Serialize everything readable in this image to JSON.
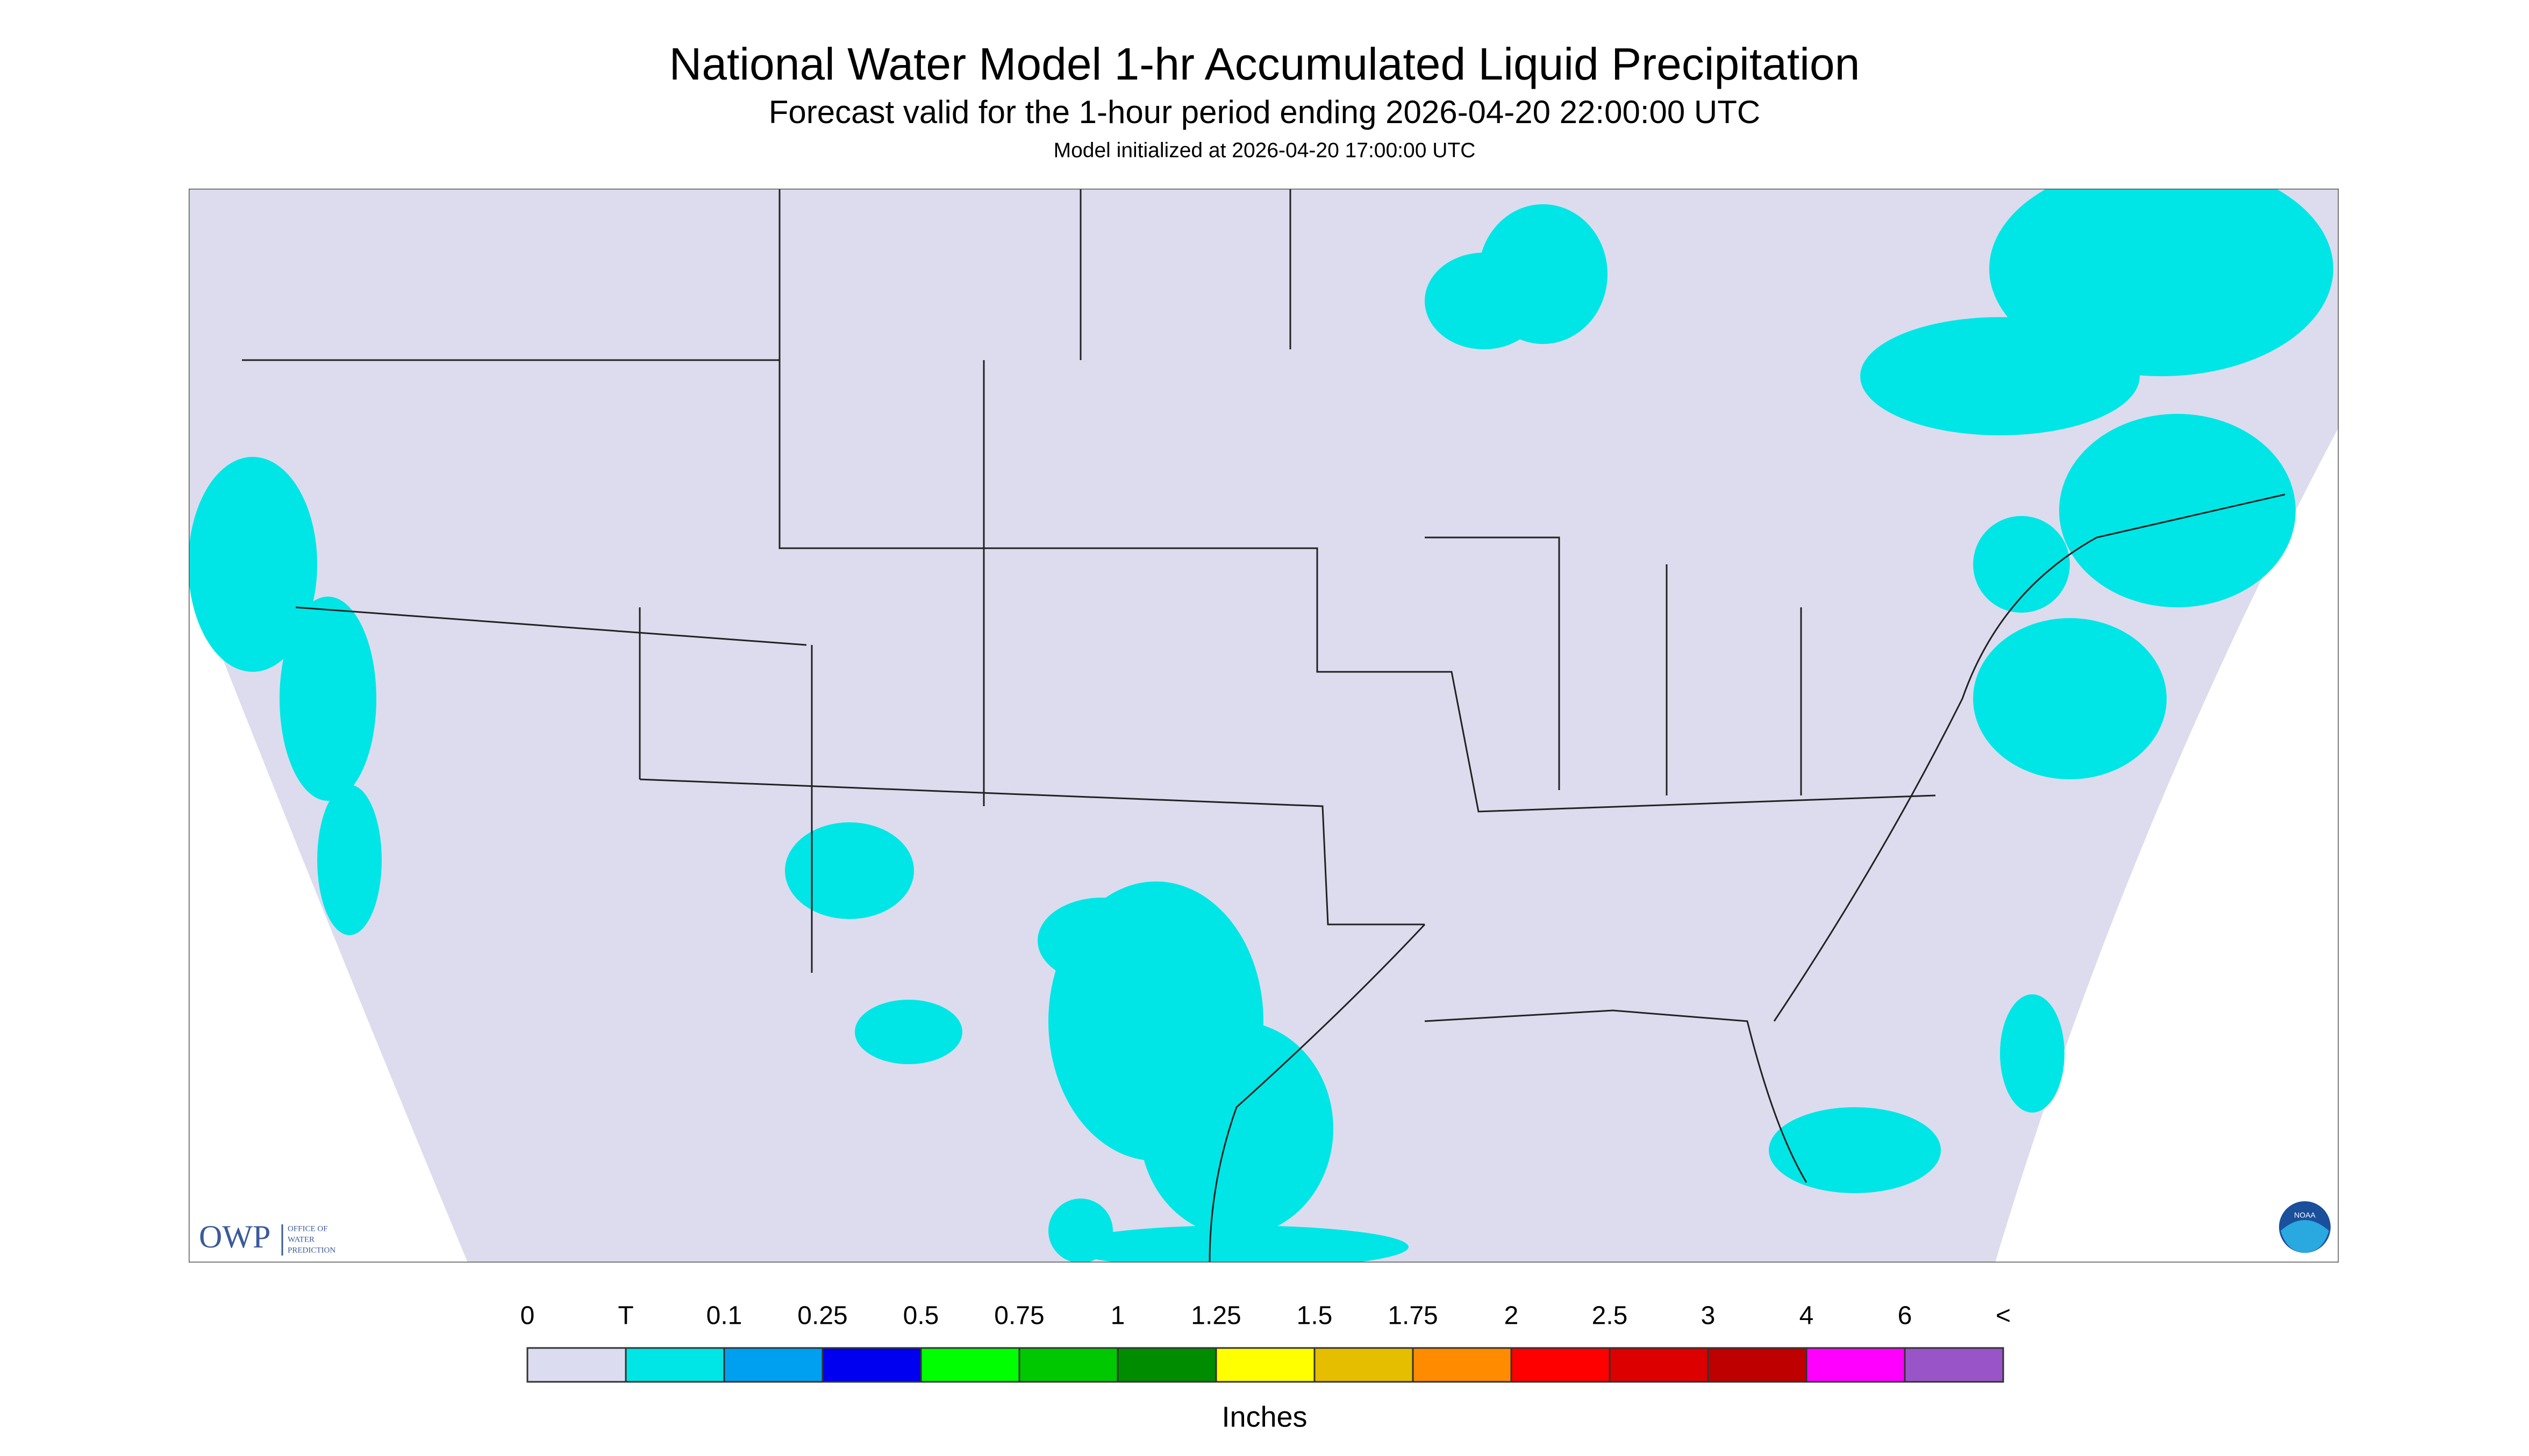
{
  "header": {
    "title": "National Water Model 1-hr Accumulated Liquid Precipitation",
    "subtitle": "Forecast valid for the 1-hour period ending 2026-04-20 22:00:00 UTC",
    "initialized": "Model initialized at 2026-04-20 17:00:00 UTC"
  },
  "legend": {
    "labels": [
      "0",
      "T",
      "0.1",
      "0.25",
      "0.5",
      "0.75",
      "1",
      "1.25",
      "1.5",
      "1.75",
      "2",
      "2.5",
      "3",
      "4",
      "6",
      "<"
    ],
    "colors": [
      "#dcdcf0",
      "#00e6e6",
      "#00a0f0",
      "#0000f0",
      "#00ff00",
      "#00c800",
      "#008c00",
      "#ffff00",
      "#e6be00",
      "#ff8c00",
      "#ff0000",
      "#dc0000",
      "#be0000",
      "#ff00ff",
      "#9955c8"
    ],
    "units": "Inches"
  },
  "logos": {
    "owp": "OWP",
    "owp_name": [
      "OFFICE OF",
      "WATER",
      "PREDICTION"
    ],
    "noaa": "NOAA"
  }
}
